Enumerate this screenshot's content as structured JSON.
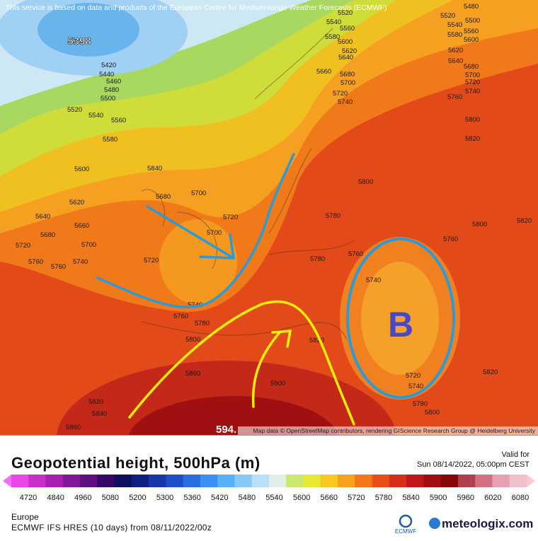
{
  "header": {
    "notice": "This service is based on data and products of the European Centre for Medium-range Weather Forecasts (ECMWF)"
  },
  "map": {
    "low_label": "5398",
    "high_label": "594.",
    "annotation": "B",
    "attribution": "Map data © OpenStreetMap contributors, rendering GIScience Research Group @ Heidelberg University",
    "contour_labels": [
      5420,
      5440,
      5460,
      5480,
      5500,
      5520,
      5540,
      5560,
      5580,
      5600,
      5620,
      5640,
      5660,
      5680,
      5700,
      5720,
      5760,
      5740,
      5760,
      5840,
      5680,
      5700,
      5720,
      5700,
      5720,
      5740,
      5760,
      5780,
      5800,
      5860,
      5820,
      5840,
      5860,
      5900,
      5800,
      5780,
      5760,
      5780,
      5740,
      5820,
      5720,
      5740,
      5780,
      5800,
      5820,
      5820,
      5800,
      5760,
      5820,
      5800,
      5760,
      5740,
      5720,
      5700,
      5680,
      5640,
      5620,
      5600,
      5580,
      5560,
      5540,
      5520,
      5500,
      5480,
      5520,
      5540,
      5560,
      5580,
      5600,
      5620,
      5640,
      5660,
      5680,
      5700,
      5720,
      5740
    ]
  },
  "legend": {
    "title": "Geopotential height, 500hPa (m)",
    "valid_label": "Valid for",
    "valid_time": "Sun 08/14/2022, 05:00pm CEST",
    "ticks": [
      4720,
      4840,
      4960,
      5080,
      5200,
      5300,
      5360,
      5420,
      5480,
      5540,
      5600,
      5660,
      5720,
      5780,
      5840,
      5900,
      5960,
      6020,
      6080
    ]
  },
  "footer": {
    "region": "Europe",
    "model": "ECMWF IFS HRES (10 days) from 08/11/2022/00z",
    "ecmwf_logo": "ECMWF",
    "brand": "meteologix.com"
  }
}
